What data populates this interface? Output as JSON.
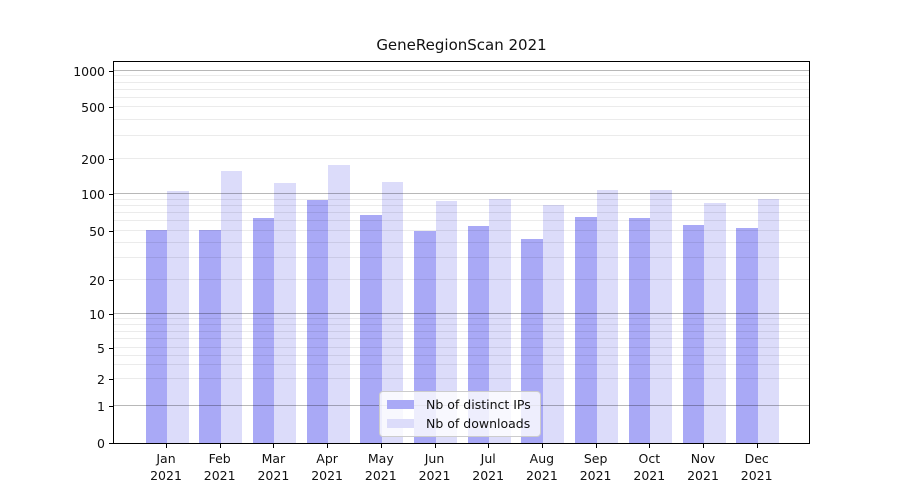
{
  "chart_data": {
    "type": "bar",
    "title": "GeneRegionScan 2021",
    "categories": [
      "Jan",
      "Feb",
      "Mar",
      "Apr",
      "May",
      "Jun",
      "Jul",
      "Aug",
      "Sep",
      "Oct",
      "Nov",
      "Dec"
    ],
    "x_year_label": "2021",
    "series": [
      {
        "name": "Nb of distinct IPs",
        "color": "#a9a9f6",
        "values": [
          51,
          51,
          64,
          89,
          68,
          50,
          55,
          43,
          65,
          64,
          56,
          53
        ]
      },
      {
        "name": "Nb of downloads",
        "color": "#dcdcfa",
        "values": [
          107,
          157,
          124,
          179,
          126,
          88,
          91,
          82,
          108,
          108,
          85,
          91
        ]
      }
    ],
    "xlabel": "",
    "ylabel": "",
    "yscale": "symlog",
    "yticks": [
      0,
      1,
      2,
      5,
      10,
      20,
      50,
      100,
      200,
      500,
      1000
    ],
    "ylim": [
      0,
      1300
    ],
    "grid": "horizontal-log-minor-and-major",
    "legend_position": "bottom-center-inside",
    "colors": {
      "axis": "#000000",
      "major_grid": "#b3b3b3",
      "minor_grid": "#e9e9e9",
      "background": "#ffffff",
      "legend_border": "#cccccc"
    }
  }
}
